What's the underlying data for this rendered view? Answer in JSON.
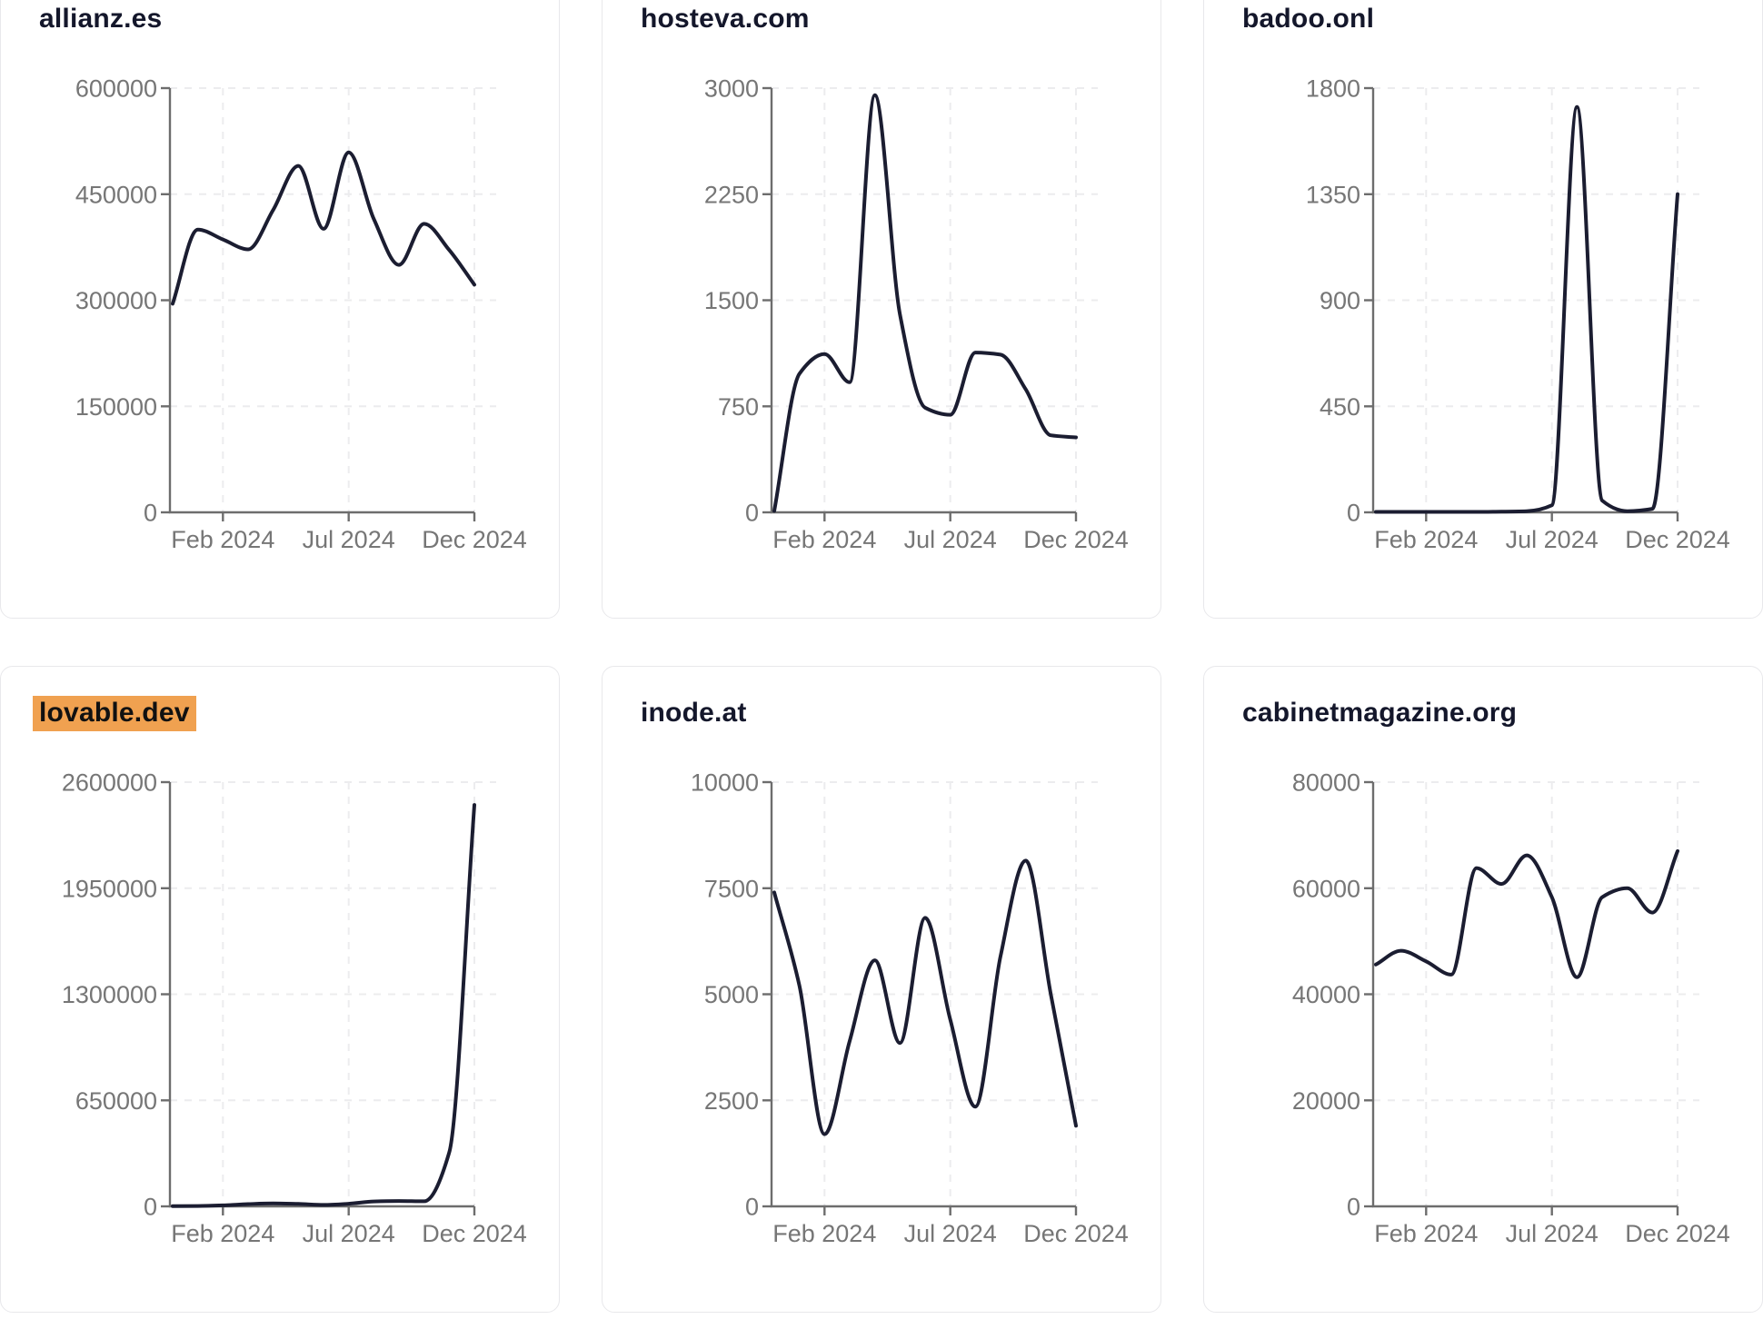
{
  "page": {
    "background": "#ffffff"
  },
  "style": {
    "line_color": "#1b1d31",
    "title_color": "#14172b",
    "axis_color": "#6d6d6d",
    "tick_label_color": "#767676",
    "grid_color": "#ececee",
    "card_border": "#e8e8eb",
    "card_bg": "#ffffff",
    "highlight_bg": "#f0a150",
    "highlight_text": "#111111"
  },
  "chart_data": [
    {
      "type": "line",
      "title": "allianz.es",
      "highlighted": false,
      "x": [
        "Dec 2023",
        "Jan 2024",
        "Feb 2024",
        "Mar 2024",
        "Apr 2024",
        "May 2024",
        "Jun 2024",
        "Jul 2024",
        "Aug 2024",
        "Sep 2024",
        "Oct 2024",
        "Nov 2024",
        "Dec 2024"
      ],
      "values": [
        295000,
        400000,
        386000,
        372000,
        428000,
        490000,
        401000,
        509000,
        415000,
        350000,
        408000,
        371000,
        322000
      ],
      "ylim": [
        0,
        600000
      ],
      "yticks": [
        0,
        150000,
        300000,
        450000,
        600000
      ],
      "xticks": [
        {
          "index": 2,
          "label": "Feb 2024"
        },
        {
          "index": 7,
          "label": "Jul 2024"
        },
        {
          "index": 12,
          "label": "Dec 2024"
        }
      ],
      "grid": "dashed",
      "legend": false
    },
    {
      "type": "line",
      "title": "hosteva.com",
      "highlighted": false,
      "x": [
        "Dec 2023",
        "Jan 2024",
        "Feb 2024",
        "Mar 2024",
        "Apr 2024",
        "May 2024",
        "Jun 2024",
        "Jul 2024",
        "Aug 2024",
        "Sep 2024",
        "Oct 2024",
        "Nov 2024",
        "Dec 2024"
      ],
      "values": [
        10,
        980,
        1120,
        920,
        2950,
        1400,
        740,
        690,
        1130,
        1115,
        870,
        545,
        530
      ],
      "ylim": [
        0,
        3000
      ],
      "yticks": [
        0,
        750,
        1500,
        2250,
        3000
      ],
      "xticks": [
        {
          "index": 2,
          "label": "Feb 2024"
        },
        {
          "index": 7,
          "label": "Jul 2024"
        },
        {
          "index": 12,
          "label": "Dec 2024"
        }
      ],
      "grid": "dashed",
      "legend": false
    },
    {
      "type": "line",
      "title": "badoo.onl",
      "highlighted": false,
      "x": [
        "Dec 2023",
        "Jan 2024",
        "Feb 2024",
        "Mar 2024",
        "Apr 2024",
        "May 2024",
        "Jun 2024",
        "Jul 2024",
        "Aug 2024",
        "Sep 2024",
        "Oct 2024",
        "Nov 2024",
        "Dec 2024"
      ],
      "values": [
        2,
        2,
        2,
        2,
        2,
        3,
        5,
        30,
        1720,
        50,
        5,
        15,
        1350
      ],
      "ylim": [
        0,
        1800
      ],
      "yticks": [
        0,
        450,
        900,
        1350,
        1800
      ],
      "xticks": [
        {
          "index": 2,
          "label": "Feb 2024"
        },
        {
          "index": 7,
          "label": "Jul 2024"
        },
        {
          "index": 12,
          "label": "Dec 2024"
        }
      ],
      "grid": "dashed",
      "legend": false
    },
    {
      "type": "line",
      "title": "lovable.dev",
      "highlighted": true,
      "x": [
        "Dec 2023",
        "Jan 2024",
        "Feb 2024",
        "Mar 2024",
        "Apr 2024",
        "May 2024",
        "Jun 2024",
        "Jul 2024",
        "Aug 2024",
        "Sep 2024",
        "Oct 2024",
        "Nov 2024",
        "Dec 2024"
      ],
      "values": [
        1000,
        2000,
        6000,
        14000,
        18000,
        15000,
        9000,
        16000,
        30000,
        33000,
        31000,
        330000,
        2460000
      ],
      "ylim": [
        0,
        2600000
      ],
      "yticks": [
        0,
        650000,
        1300000,
        1950000,
        2600000
      ],
      "xticks": [
        {
          "index": 2,
          "label": "Feb 2024"
        },
        {
          "index": 7,
          "label": "Jul 2024"
        },
        {
          "index": 12,
          "label": "Dec 2024"
        }
      ],
      "grid": "dashed",
      "legend": false
    },
    {
      "type": "line",
      "title": "inode.at",
      "highlighted": false,
      "x": [
        "Dec 2023",
        "Jan 2024",
        "Feb 2024",
        "Mar 2024",
        "Apr 2024",
        "May 2024",
        "Jun 2024",
        "Jul 2024",
        "Aug 2024",
        "Sep 2024",
        "Oct 2024",
        "Nov 2024",
        "Dec 2024"
      ],
      "values": [
        7400,
        5200,
        1700,
        3900,
        5800,
        3850,
        6800,
        4400,
        2350,
        5900,
        8150,
        5000,
        1900
      ],
      "ylim": [
        0,
        10000
      ],
      "yticks": [
        0,
        2500,
        5000,
        7500,
        10000
      ],
      "xticks": [
        {
          "index": 2,
          "label": "Feb 2024"
        },
        {
          "index": 7,
          "label": "Jul 2024"
        },
        {
          "index": 12,
          "label": "Dec 2024"
        }
      ],
      "grid": "dashed",
      "legend": false
    },
    {
      "type": "line",
      "title": "cabinetmagazine.org",
      "highlighted": false,
      "x": [
        "Dec 2023",
        "Jan 2024",
        "Feb 2024",
        "Mar 2024",
        "Apr 2024",
        "May 2024",
        "Jun 2024",
        "Jul 2024",
        "Aug 2024",
        "Sep 2024",
        "Oct 2024",
        "Nov 2024",
        "Dec 2024"
      ],
      "values": [
        45600,
        48200,
        46200,
        43700,
        63800,
        60800,
        66200,
        58300,
        43200,
        58300,
        60000,
        55400,
        67000
      ],
      "ylim": [
        0,
        80000
      ],
      "yticks": [
        0,
        20000,
        40000,
        60000,
        80000
      ],
      "xticks": [
        {
          "index": 2,
          "label": "Feb 2024"
        },
        {
          "index": 7,
          "label": "Jul 2024"
        },
        {
          "index": 12,
          "label": "Dec 2024"
        }
      ],
      "grid": "dashed",
      "legend": false
    }
  ]
}
